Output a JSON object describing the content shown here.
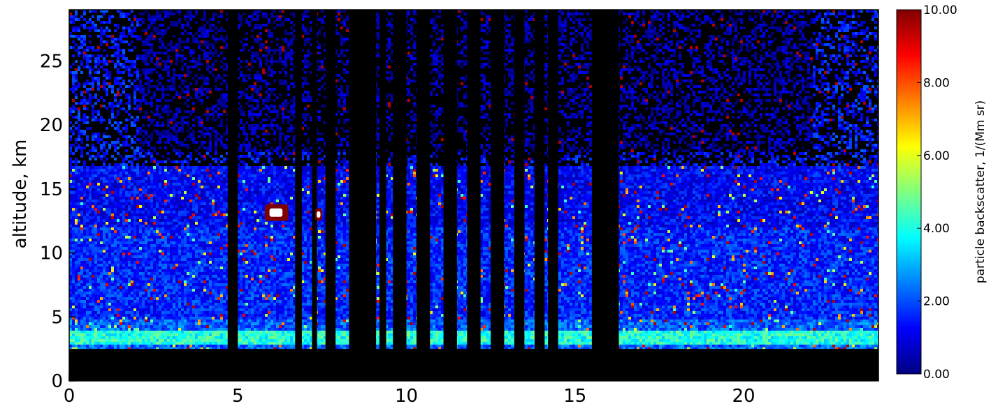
{
  "chart_data": {
    "type": "heatmap",
    "title": "",
    "xlabel": "",
    "ylabel": "altitude, km",
    "xlim": [
      0,
      24
    ],
    "ylim": [
      0,
      29
    ],
    "x_ticks": [
      "0",
      "5",
      "10",
      "15",
      "20"
    ],
    "x_tick_values": [
      0,
      5,
      10,
      15,
      20
    ],
    "y_ticks": [
      "0",
      "5",
      "10",
      "15",
      "20",
      "25"
    ],
    "y_tick_values": [
      0,
      5,
      10,
      15,
      20,
      25
    ],
    "colorbar": {
      "label": "particle backscatter, 1/(Mm sr)",
      "range": [
        0,
        10
      ],
      "tick_labels": [
        "0.00",
        "2.00",
        "4.00",
        "6.00",
        "8.00",
        "10.00"
      ],
      "tick_values": [
        0,
        2,
        4,
        6,
        8,
        10
      ],
      "colormap": "rainbow",
      "colors": [
        "#00007f",
        "#0000ff",
        "#0080ff",
        "#00ffff",
        "#80ff80",
        "#ffff00",
        "#ff8000",
        "#ff0000",
        "#7f0000"
      ]
    },
    "surface_altitude_km": 2.5,
    "bright_layer_km": [
      3,
      4
    ],
    "high_backscatter_patches": [
      {
        "x": [
          5.8,
          6.5
        ],
        "y": [
          12.5,
          13.8
        ],
        "value": 10
      },
      {
        "x": [
          7.3,
          7.5
        ],
        "y": [
          12.5,
          13.5
        ],
        "value": 10
      }
    ],
    "no_data_intervals": [
      [
        4.7,
        5.0
      ],
      [
        6.7,
        6.9
      ],
      [
        7.2,
        7.35
      ],
      [
        7.6,
        7.9
      ],
      [
        8.3,
        9.1
      ],
      [
        9.2,
        9.4
      ],
      [
        9.6,
        10.0
      ],
      [
        10.3,
        10.7
      ],
      [
        11.1,
        11.5
      ],
      [
        11.8,
        12.2
      ],
      [
        12.5,
        12.9
      ],
      [
        13.2,
        13.5
      ],
      [
        13.8,
        14.1
      ],
      [
        14.2,
        14.5
      ],
      [
        15.5,
        16.3
      ]
    ]
  }
}
